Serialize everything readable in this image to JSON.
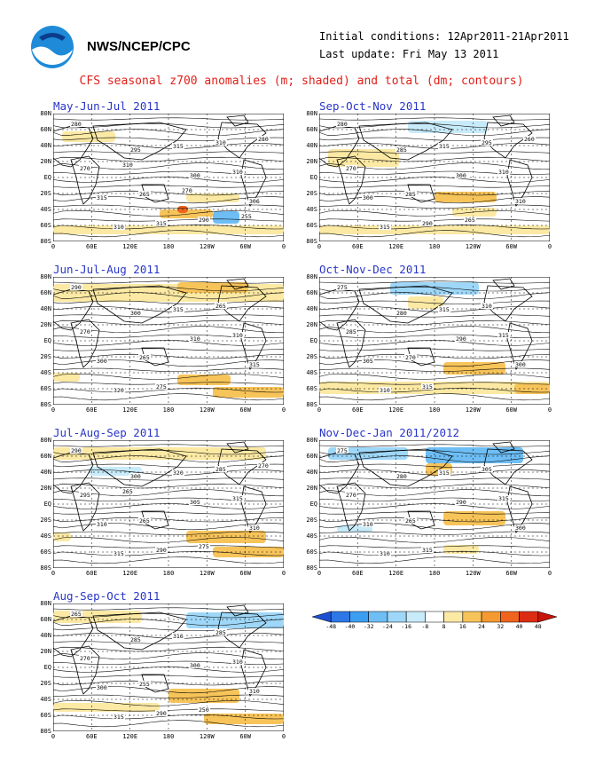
{
  "header": {
    "org": "NWS/NCEP/CPC",
    "initial_conditions": "Initial conditions: 12Apr2011-21Apr2011",
    "last_update": "Last update: Fri May 13 2011",
    "title": "CFS seasonal z700 anomalies (m; shaded) and total (dm; contours)"
  },
  "panels": [
    {
      "label": "May-Jun-Jul 2011",
      "contours": [
        "280",
        "295",
        "300",
        "306",
        "310",
        "315",
        "310",
        "315",
        "315",
        "310",
        "270",
        "265",
        "290",
        "280",
        "310",
        "270",
        "255"
      ]
    },
    {
      "label": "Sep-Oct-Nov 2011",
      "contours": [
        "280",
        "285",
        "300",
        "310",
        "315",
        "315",
        "310",
        "300",
        "290",
        "295",
        "270",
        "285",
        "265",
        "260"
      ]
    },
    {
      "label": "Jun-Jul-Aug 2011",
      "contours": [
        "290",
        "300",
        "310",
        "315",
        "320",
        "315",
        "310",
        "300",
        "275",
        "265",
        "270",
        "265"
      ]
    },
    {
      "label": "Oct-Nov-Dec 2011",
      "contours": [
        "275",
        "280",
        "290",
        "300",
        "310",
        "315",
        "315",
        "305",
        "315",
        "310",
        "285",
        "270"
      ]
    },
    {
      "label": "Jul-Aug-Sep 2011",
      "contours": [
        "290",
        "300",
        "305",
        "310",
        "315",
        "320",
        "315",
        "310",
        "290",
        "285",
        "295",
        "265",
        "275",
        "270",
        "265"
      ]
    },
    {
      "label": "Nov-Dec-Jan 2011/2012",
      "contours": [
        "275",
        "280",
        "290",
        "300",
        "310",
        "315",
        "315",
        "310",
        "315",
        "305",
        "270",
        "265"
      ]
    },
    {
      "label": "Aug-Sep-Oct 2011",
      "contours": [
        "265",
        "285",
        "300",
        "310",
        "315",
        "316",
        "310",
        "300",
        "290",
        "285",
        "270",
        "255",
        "250"
      ]
    }
  ],
  "axes": {
    "lat_labels": [
      "80N",
      "60N",
      "40N",
      "20N",
      "EQ",
      "20S",
      "40S",
      "60S",
      "80S"
    ],
    "lon_labels": [
      "0",
      "60E",
      "120E",
      "180",
      "120W",
      "60W",
      "0"
    ]
  },
  "colorbar": {
    "labels": [
      "-48",
      "-40",
      "-32",
      "-24",
      "-16",
      "-8",
      "8",
      "16",
      "24",
      "32",
      "40",
      "48"
    ],
    "colors": [
      "#1e50d2",
      "#2d78e6",
      "#3c9ef0",
      "#6ebef5",
      "#9ed7f8",
      "#c8ebfa",
      "#ffffff",
      "#fbe9a4",
      "#f7c45a",
      "#f59a32",
      "#f0641e",
      "#dc2d14",
      "#c8140a"
    ]
  }
}
